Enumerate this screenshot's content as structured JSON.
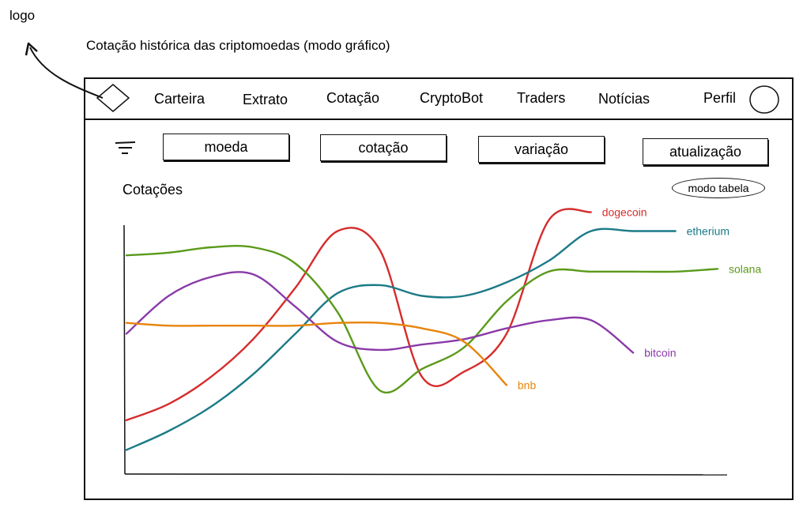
{
  "annotations": {
    "logo_note": "logo",
    "page_caption": "Cotação histórica das criptomoedas (modo gráfico)"
  },
  "navbar": {
    "items": [
      {
        "label": "Carteira"
      },
      {
        "label": "Extrato"
      },
      {
        "label": "Cotação"
      },
      {
        "label": "CryptoBot"
      },
      {
        "label": "Traders"
      },
      {
        "label": "Notícias"
      }
    ],
    "profile_label": "Perfil"
  },
  "filters": {
    "buttons": [
      {
        "label": "moeda"
      },
      {
        "label": "cotação"
      },
      {
        "label": "variação"
      },
      {
        "label": "atualização"
      }
    ]
  },
  "content": {
    "title": "Cotações",
    "mode_toggle": "modo tabela"
  },
  "chart_data": {
    "type": "line",
    "title": "Cotações",
    "xlabel": "",
    "ylabel": "",
    "grid": false,
    "legend": "inline-right",
    "x": [
      0,
      1,
      2,
      3,
      4,
      5,
      6,
      7,
      8,
      9,
      10,
      11,
      12,
      13,
      14
    ],
    "ylim": [
      0,
      100
    ],
    "series": [
      {
        "name": "dogecoin",
        "color": "#d62c2c",
        "values": [
          17,
          23,
          33,
          47,
          66,
          87,
          80,
          33,
          35,
          49,
          91,
          94,
          null,
          null,
          null
        ]
      },
      {
        "name": "etherium",
        "color": "#1b7a87",
        "values": [
          6,
          13,
          22,
          34,
          49,
          64,
          67,
          63,
          63,
          68,
          76,
          87,
          87,
          87,
          null
        ]
      },
      {
        "name": "solana",
        "color": "#5a9a1a",
        "values": [
          78,
          79,
          81,
          81,
          75,
          57,
          28,
          36,
          44,
          61,
          72,
          72,
          72,
          72,
          73
        ]
      },
      {
        "name": "bitcoin",
        "color": "#8a3aa8",
        "values": [
          49,
          63,
          70,
          71,
          59,
          46,
          43,
          45,
          47,
          51,
          54,
          54,
          42,
          null,
          null
        ]
      },
      {
        "name": "bnb",
        "color": "#e8840a",
        "values": [
          53,
          52,
          52,
          52,
          52,
          53,
          53,
          51,
          46,
          30,
          null,
          null,
          null,
          null,
          null
        ]
      }
    ]
  }
}
